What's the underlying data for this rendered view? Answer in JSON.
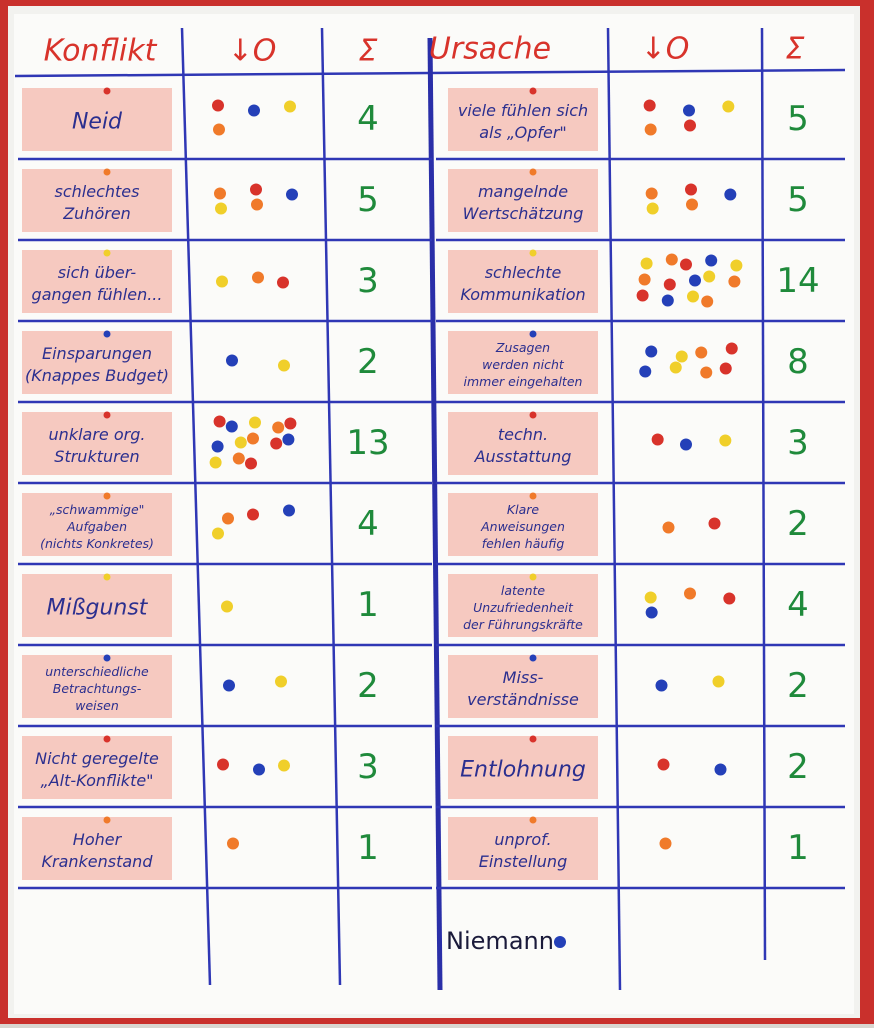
{
  "header": {
    "left": {
      "title": "Konflikt",
      "dots": "↓O",
      "sum": "Σ"
    },
    "right": {
      "title": "Ursache",
      "dots": "↓O",
      "sum": "Σ"
    }
  },
  "left_rows": [
    {
      "lines": [
        "Neid"
      ],
      "count": 4
    },
    {
      "lines": [
        "schlechtes",
        "Zuhören"
      ],
      "count": 5
    },
    {
      "lines": [
        "sich über-",
        "gangen fühlen..."
      ],
      "count": 3
    },
    {
      "lines": [
        "Einsparungen",
        "(Knappes Budget)"
      ],
      "count": 2
    },
    {
      "lines": [
        "unklare org.",
        "Strukturen"
      ],
      "count": 13
    },
    {
      "lines": [
        "„schwammige\"",
        "Aufgaben",
        "(nichts Konkretes)"
      ],
      "count": 4
    },
    {
      "lines": [
        "Mißgunst"
      ],
      "count": 1
    },
    {
      "lines": [
        "unterschiedliche",
        "Betrachtungs-",
        "weisen"
      ],
      "count": 2
    },
    {
      "lines": [
        "Nicht geregelte",
        "„Alt-Konflikte\""
      ],
      "count": 3
    },
    {
      "lines": [
        "Hoher",
        "Krankenstand"
      ],
      "count": 1
    }
  ],
  "right_rows": [
    {
      "lines": [
        "viele fühlen sich",
        "als „Opfer\""
      ],
      "count": 5
    },
    {
      "lines": [
        "mangelnde",
        "Wertschätzung"
      ],
      "count": 5
    },
    {
      "lines": [
        "schlechte",
        "Kommunikation"
      ],
      "count": 14
    },
    {
      "lines": [
        "Zusagen",
        "werden nicht",
        "immer eingehalten"
      ],
      "count": 8
    },
    {
      "lines": [
        "techn.",
        "Ausstattung"
      ],
      "count": 3
    },
    {
      "lines": [
        "Klare",
        "Anweisungen",
        "fehlen häufig"
      ],
      "count": 2
    },
    {
      "lines": [
        "latente",
        "Unzufriedenheit",
        "der Führungskräfte"
      ],
      "count": 4
    },
    {
      "lines": [
        "Miss-",
        "verständnisse"
      ],
      "count": 2
    },
    {
      "lines": [
        "Entlohnung"
      ],
      "count": 2
    },
    {
      "lines": [
        "unprof.",
        "Einstellung"
      ],
      "count": 1
    }
  ],
  "footer": "Niemann"
}
